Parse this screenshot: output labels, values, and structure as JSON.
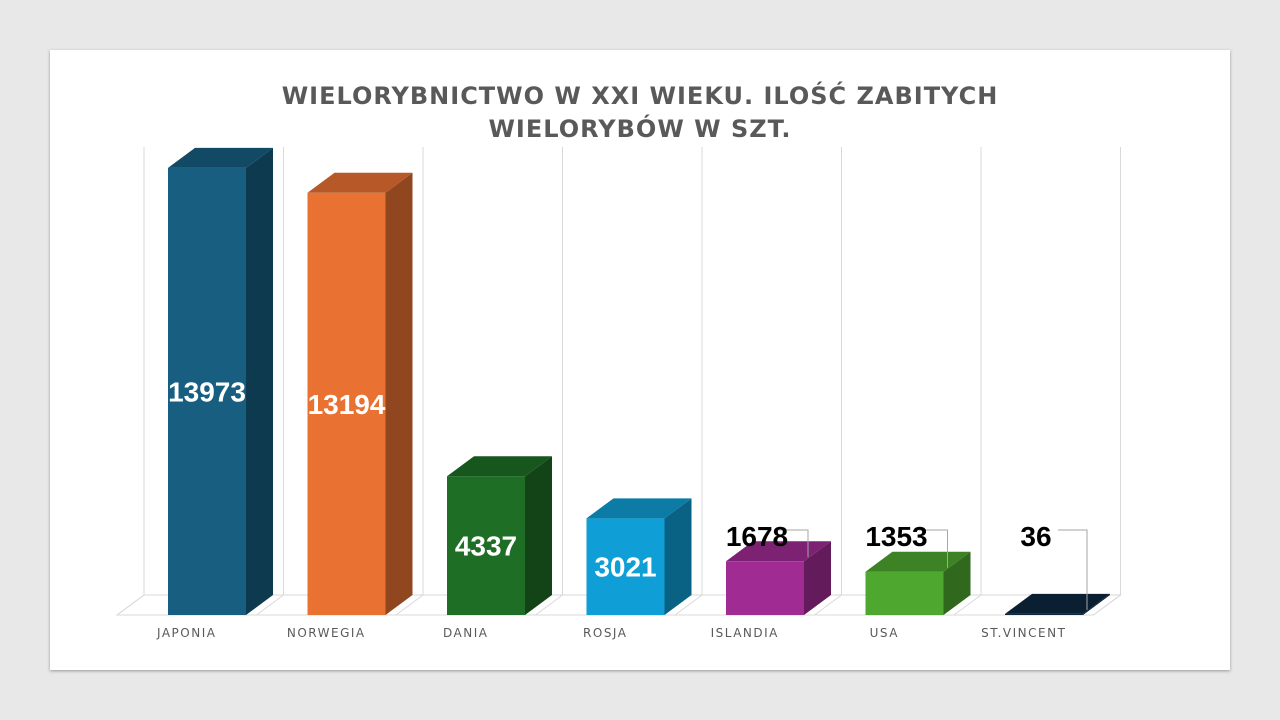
{
  "chart_data": {
    "type": "bar",
    "style": "3d-column",
    "title_lines": [
      "WIELORYBNICTWO W XXI WIEKU. ILOŚĆ ZABITYCH",
      "WIELORYBÓW W SZT."
    ],
    "xlabel": "",
    "ylabel": "",
    "categories": [
      "JAPONIA",
      "NORWEGIA",
      "DANIA",
      "ROSJA",
      "ISLANDIA",
      "USA",
      "ST.VINCENT"
    ],
    "values": [
      13973,
      13194,
      4337,
      3021,
      1678,
      1353,
      36
    ],
    "value_labels": [
      "13973",
      "13194",
      "4337",
      "3021",
      "1678",
      "1353",
      "36"
    ],
    "colors": [
      "#175e80",
      "#e97132",
      "#1e6e25",
      "#0f9ed5",
      "#a02b93",
      "#4ea72e",
      "#0e2841"
    ],
    "ylim": [
      0,
      14000
    ],
    "grid": true,
    "legend": "none"
  }
}
